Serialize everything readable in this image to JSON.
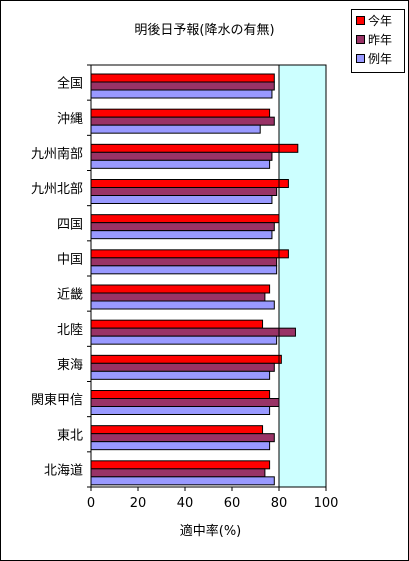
{
  "chart_data": {
    "type": "bar",
    "orientation": "horizontal",
    "title": "明後日予報(降水の有無)",
    "xlabel": "適中率(%)",
    "xlim": [
      0,
      100
    ],
    "xticks": [
      0,
      20,
      40,
      60,
      80,
      100
    ],
    "highlight_range": [
      80,
      100
    ],
    "legend_position": "top-right",
    "categories": [
      "全国",
      "沖縄",
      "九州南部",
      "九州北部",
      "四国",
      "中国",
      "近畿",
      "北陸",
      "東海",
      "関東甲信",
      "東北",
      "北海道"
    ],
    "series": [
      {
        "name": "今年",
        "color": "#ff0000",
        "values": [
          78,
          76,
          88,
          84,
          80,
          84,
          76,
          73,
          81,
          76,
          73,
          76
        ]
      },
      {
        "name": "昨年",
        "color": "#993366",
        "values": [
          78,
          78,
          77,
          79,
          78,
          79,
          74,
          87,
          78,
          80,
          78,
          74
        ]
      },
      {
        "name": "例年",
        "color": "#9999ff",
        "values": [
          77,
          72,
          76,
          77,
          77,
          79,
          78,
          79,
          76,
          76,
          76,
          78
        ]
      }
    ]
  }
}
